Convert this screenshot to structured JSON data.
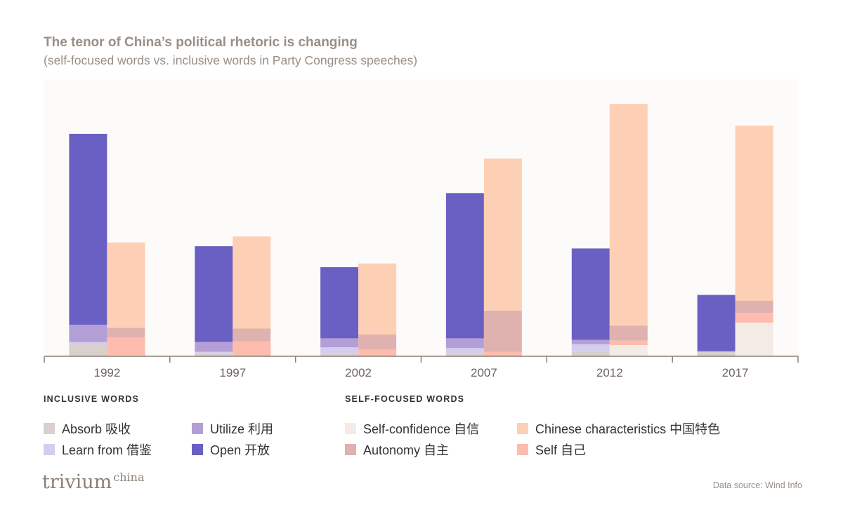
{
  "header": {
    "title": "The tenor of China’s political rhetoric is changing",
    "subtitle": "(self-focused words vs. inclusive words in Party Congress speeches)"
  },
  "legend": {
    "inclusive_heading": "INCLUSIVE WORDS",
    "self_heading": "SELF-FOCUSED WORDS",
    "inclusive": [
      {
        "label": "Absorb 吸收",
        "color": "#d9cfcd"
      },
      {
        "label": "Learn from 借鉴",
        "color": "#d4cdf0"
      },
      {
        "label": "Utilize 利用",
        "color": "#b49ed6"
      },
      {
        "label": "Open 开放",
        "color": "#6a60c3"
      }
    ],
    "self": [
      {
        "label": "Self-confidence 自信",
        "color": "#f4ebe6"
      },
      {
        "label": "Autonomy 自主",
        "color": "#dfb2b0"
      },
      {
        "label": "Chinese characteristics 中国特色",
        "color": "#fdcfb5"
      },
      {
        "label": "Self 自己",
        "color": "#fdbcae"
      }
    ]
  },
  "footer": {
    "brand": "trivium",
    "brand_sup": "china",
    "source": "Data source: Wind Info"
  },
  "chart_data": {
    "type": "bar",
    "stacked": true,
    "grouped": true,
    "title": "The tenor of China’s political rhetoric is changing",
    "subtitle": "(self-focused words vs. inclusive words in Party Congress speeches)",
    "categories": [
      "1992",
      "1997",
      "2002",
      "2007",
      "2012",
      "2017"
    ],
    "ylim": [
      0,
      370
    ],
    "groups": [
      {
        "name": "Inclusive words",
        "series": [
          {
            "name": "Absorb 吸收",
            "color": "#d9cfcd",
            "values": [
              16,
              3,
              3,
              4,
              6,
              6
            ]
          },
          {
            "name": "Learn from 借鉴",
            "color": "#d4cdf0",
            "values": [
              3,
              3,
              9,
              7,
              10,
              0
            ]
          },
          {
            "name": "Utilize 利用",
            "color": "#b49ed6",
            "values": [
              23,
              13,
              12,
              13,
              6,
              1
            ]
          },
          {
            "name": "Open 开放",
            "color": "#6a60c3",
            "values": [
              255,
              128,
              95,
              194,
              122,
              75
            ]
          }
        ]
      },
      {
        "name": "Self-focused words",
        "series": [
          {
            "name": "Self-confidence 自信",
            "color": "#f4ebe6",
            "values": [
              1,
              0,
              0,
              0,
              15,
              45
            ]
          },
          {
            "name": "Self 自己",
            "color": "#fdbcae",
            "values": [
              24,
              20,
              9,
              6,
              6,
              13
            ]
          },
          {
            "name": "Autonomy 自主",
            "color": "#dfb2b0",
            "values": [
              13,
              17,
              20,
              55,
              20,
              16
            ]
          },
          {
            "name": "Chinese characteristics 中国特色",
            "color": "#fdcfb5",
            "values": [
              114,
              123,
              95,
              203,
              296,
              234
            ]
          }
        ]
      }
    ]
  }
}
